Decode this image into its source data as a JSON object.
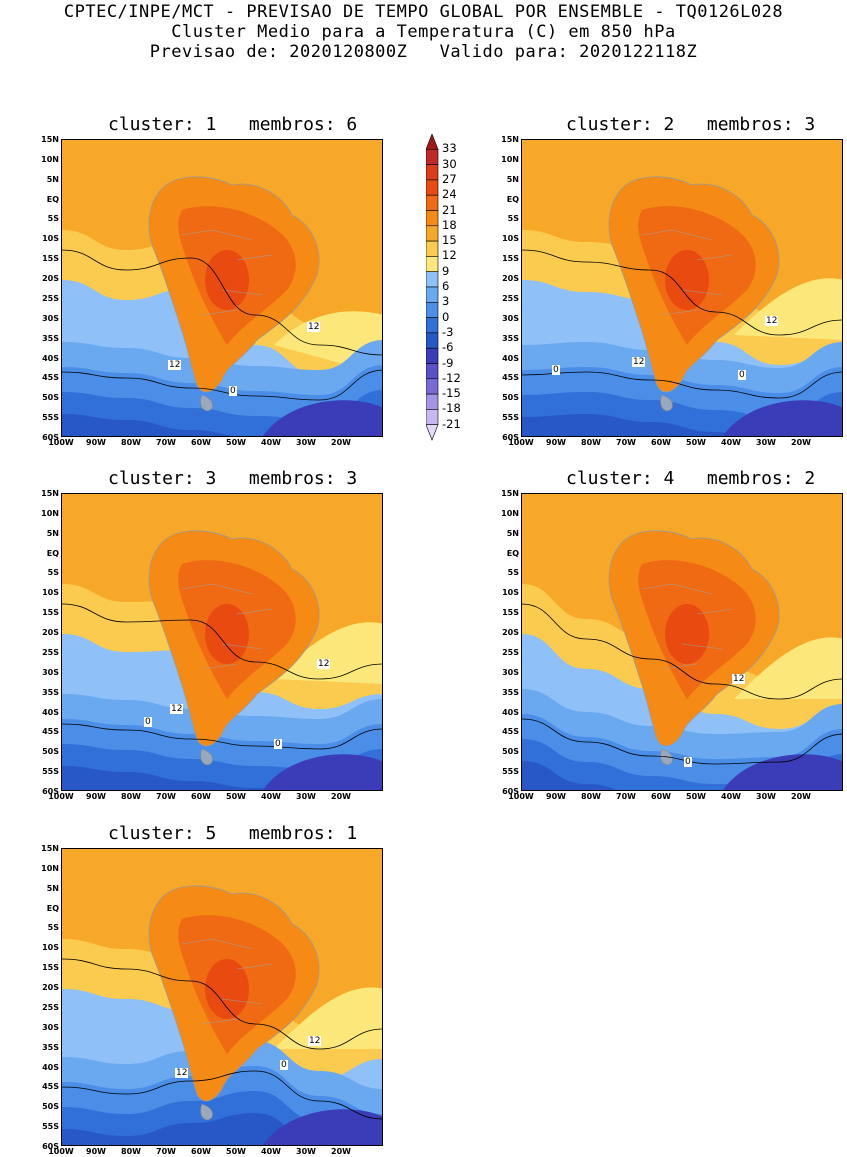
{
  "header": {
    "line1": "CPTEC/INPE/MCT - PREVISAO DE TEMPO GLOBAL POR ENSEMBLE - TQ0126L028",
    "line2": "Cluster Medio para a Temperatura (C) em 850 hPa",
    "line3": "Previsao de: 2020120800Z   Valido para: 2020122118Z"
  },
  "axes": {
    "lat_labels": [
      "15N",
      "10N",
      "5N",
      "EQ",
      "5S",
      "10S",
      "15S",
      "20S",
      "25S",
      "30S",
      "35S",
      "40S",
      "45S",
      "50S",
      "55S",
      "60S"
    ],
    "lon_labels": [
      "100W",
      "90W",
      "80W",
      "70W",
      "60W",
      "50W",
      "40W",
      "30W",
      "20W"
    ]
  },
  "colorbar": {
    "levels": [
      "33",
      "30",
      "27",
      "24",
      "21",
      "18",
      "15",
      "12",
      "9",
      "6",
      "3",
      "0",
      "-3",
      "-6",
      "-9",
      "-12",
      "-15",
      "-18",
      "-21"
    ],
    "colors": [
      "#a01818",
      "#c22828",
      "#dc3c1c",
      "#e84a10",
      "#f06a14",
      "#f58a14",
      "#f8a828",
      "#fbcb50",
      "#fce87a",
      "#8fc0f8",
      "#6aa8f0",
      "#4a8ee8",
      "#3070d8",
      "#2858c8",
      "#3a3cb8",
      "#5a50c8",
      "#7a6ad6",
      "#a694e4",
      "#c8b8f0",
      "#e2d8f8"
    ]
  },
  "panels": [
    {
      "title": "cluster: 1   membros: 6",
      "contour_labels": [
        "12",
        "12",
        "0"
      ]
    },
    {
      "title": "cluster: 2   membros: 3",
      "contour_labels": [
        "12",
        "12",
        "0",
        "0"
      ]
    },
    {
      "title": "cluster: 3   membros: 3",
      "contour_labels": [
        "12",
        "12",
        "0",
        "0"
      ]
    },
    {
      "title": "cluster: 4   membros: 2",
      "contour_labels": [
        "12",
        "0"
      ]
    },
    {
      "title": "cluster: 5   membros: 1",
      "contour_labels": [
        "12",
        "12",
        "0"
      ]
    }
  ]
}
